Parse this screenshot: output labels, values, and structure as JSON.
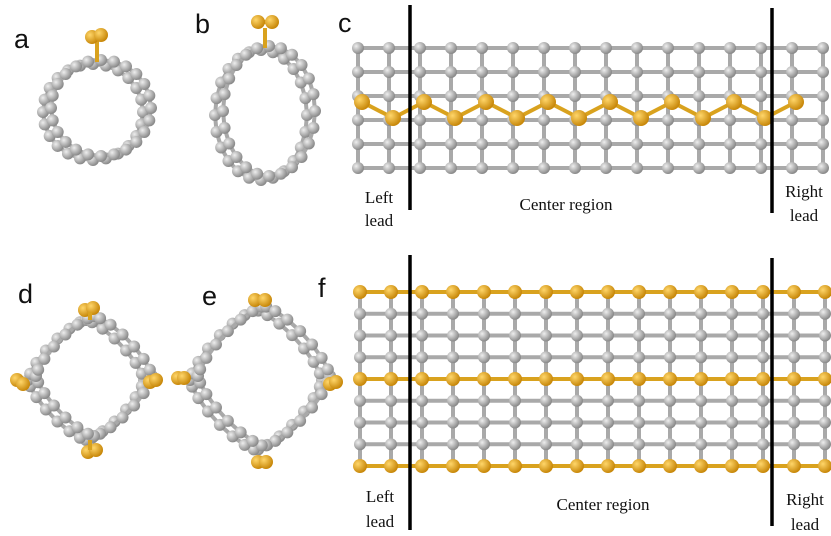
{
  "panels": [
    {
      "label": "a"
    },
    {
      "label": "b"
    },
    {
      "label": "c"
    },
    {
      "label": "d"
    },
    {
      "label": "e"
    },
    {
      "label": "f"
    }
  ],
  "top_regions": {
    "left_lead": [
      "Left",
      "lead"
    ],
    "center": "Center region",
    "right_lead": [
      "Right",
      "lead"
    ]
  },
  "bottom_regions": {
    "left_lead": [
      "Left",
      "lead"
    ],
    "center": "Center region",
    "right_lead": [
      "Right",
      "lead"
    ]
  }
}
